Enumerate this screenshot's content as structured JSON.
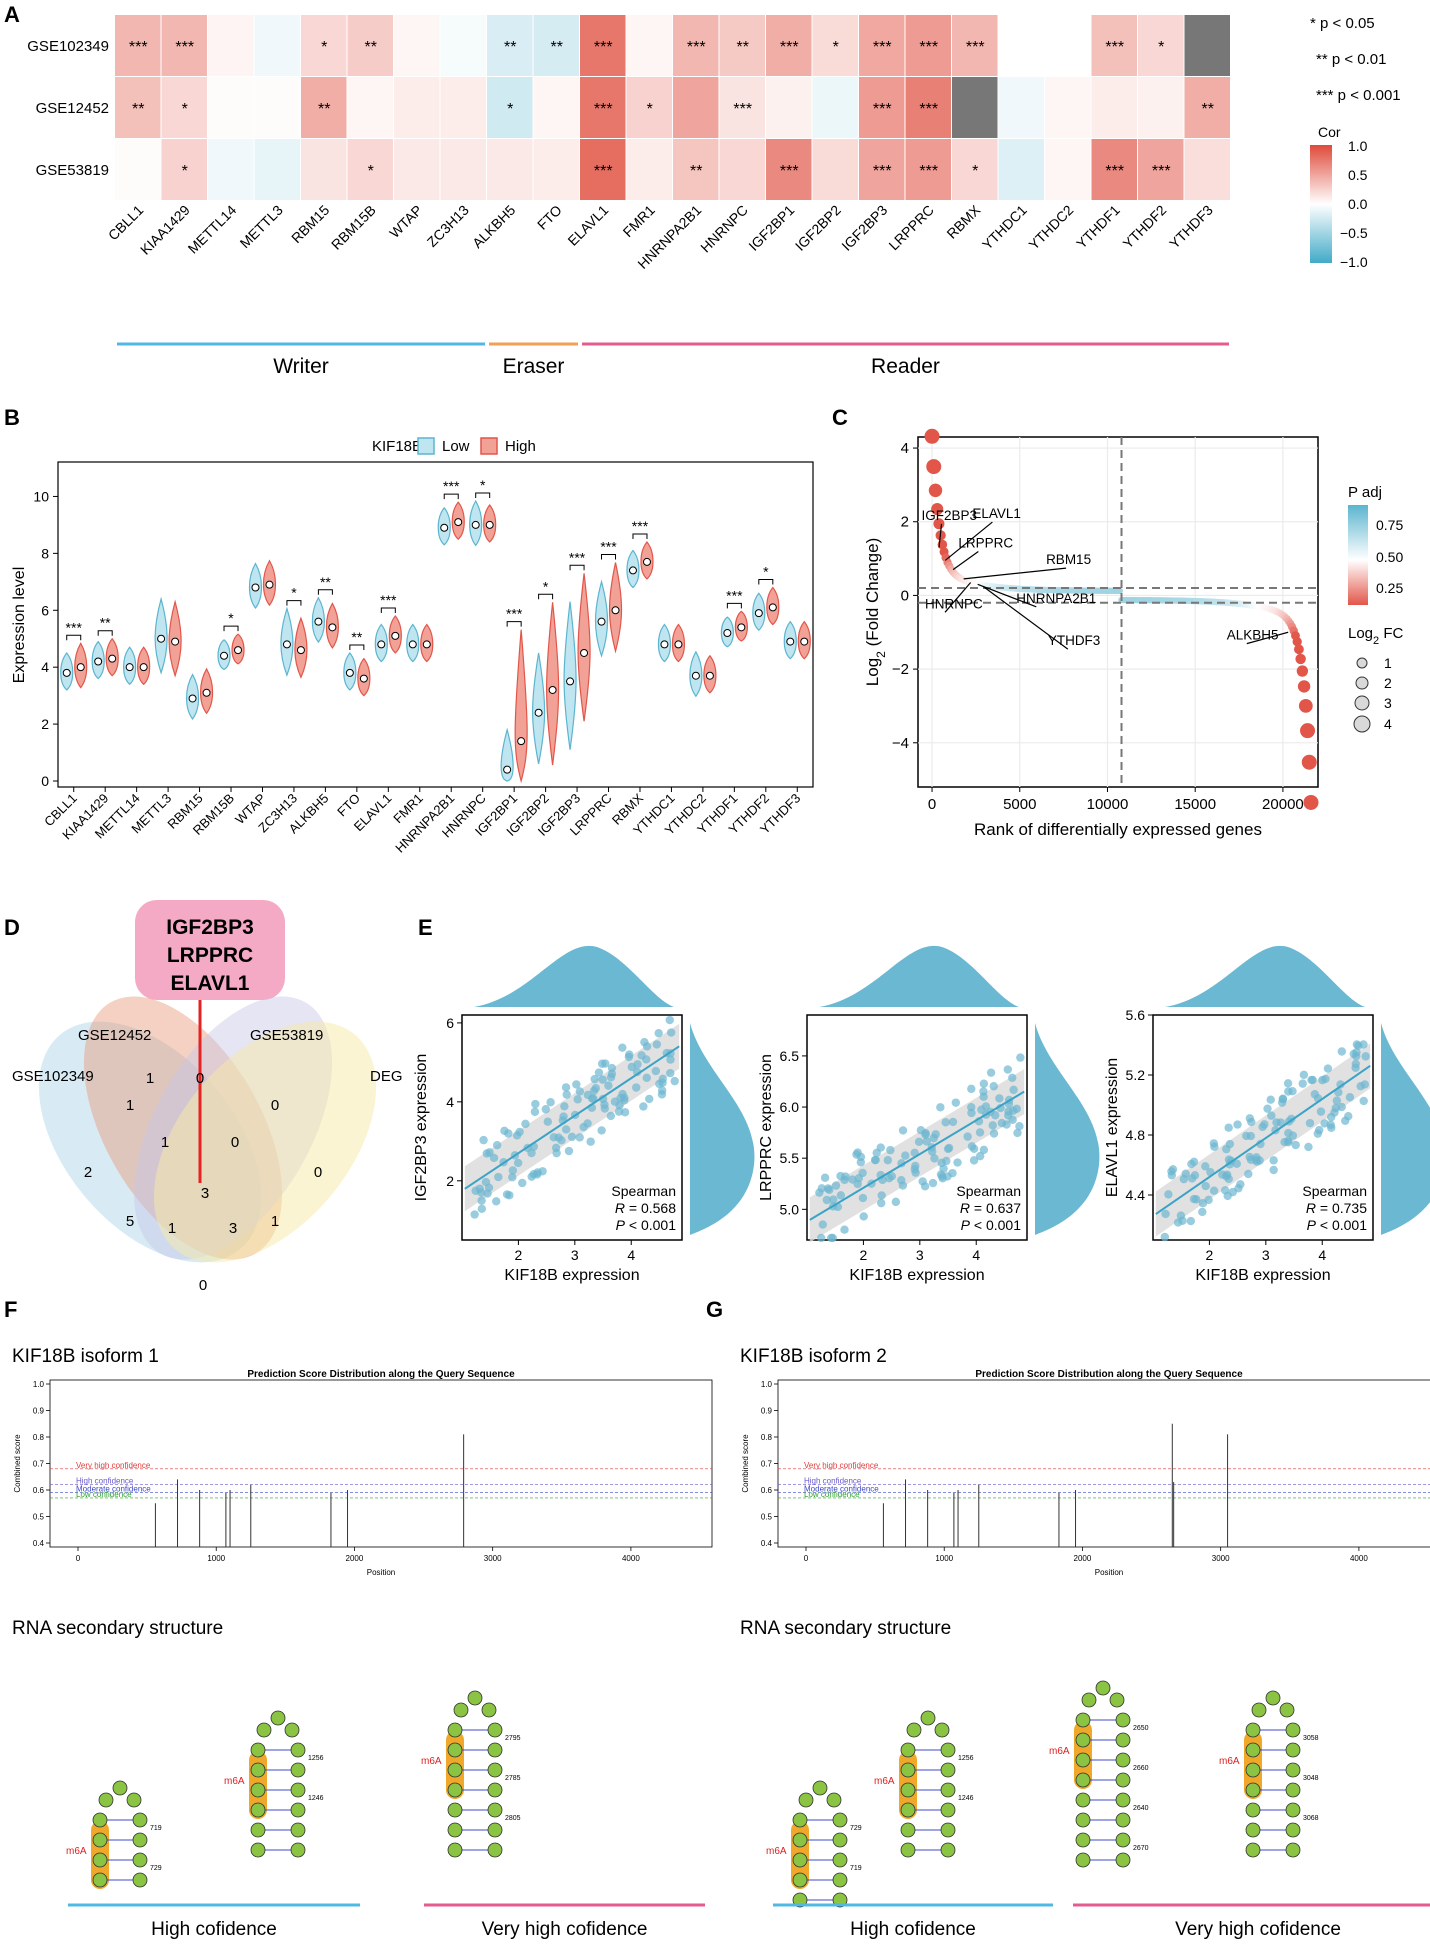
{
  "panels": {
    "A": "A",
    "B": "B",
    "C": "C",
    "D": "D",
    "E": "E",
    "F": "F",
    "G": "G"
  },
  "colors": {
    "low": "#5bb5cf",
    "high": "#e2564a",
    "writer": "#4fb8e3",
    "eraser": "#f2a052",
    "reader": "#e45b8f",
    "scatter": "#5aaecb",
    "venn_label_bg": "#f4a9c5",
    "m6a_highlight": "#f0a82a",
    "nucleotide": "#8ac442"
  },
  "heatmap": {
    "datasets": [
      "GSE102349",
      "GSE12452",
      "GSE53819"
    ],
    "genes": [
      "CBLL1",
      "KIAA1429",
      "METTL14",
      "METTL3",
      "RBM15",
      "RBM15B",
      "WTAP",
      "ZC3H13",
      "ALKBH5",
      "FTO",
      "ELAVL1",
      "FMR1",
      "HNRNPA2B1",
      "HNRNPC",
      "IGF2BP1",
      "IGF2BP2",
      "IGF2BP3",
      "LRPPRC",
      "RBMX",
      "YTHDC1",
      "YTHDC2",
      "YTHDF1",
      "YTHDF2",
      "YTHDF3"
    ],
    "values": [
      [
        0.4,
        0.4,
        0.06,
        -0.08,
        0.22,
        0.28,
        0.05,
        -0.05,
        -0.2,
        -0.22,
        0.75,
        0.05,
        0.4,
        0.3,
        0.45,
        0.2,
        0.48,
        0.55,
        0.4,
        0.0,
        0.0,
        0.35,
        0.22,
        null
      ],
      [
        0.35,
        0.22,
        0.02,
        0.02,
        0.45,
        0.05,
        0.1,
        0.1,
        -0.25,
        0.05,
        0.75,
        0.25,
        0.5,
        0.15,
        0.08,
        -0.1,
        0.55,
        0.7,
        null,
        -0.08,
        0.05,
        0.1,
        0.08,
        0.45
      ],
      [
        0.02,
        0.25,
        -0.08,
        -0.12,
        0.15,
        0.22,
        0.12,
        0.12,
        0.12,
        0.1,
        0.8,
        0.1,
        0.32,
        0.22,
        0.65,
        0.2,
        0.5,
        0.55,
        0.22,
        -0.18,
        0.05,
        0.65,
        0.5,
        0.18
      ]
    ],
    "stars": [
      [
        "***",
        "***",
        "",
        "",
        "*",
        "**",
        "",
        "",
        "**",
        "**",
        "***",
        "",
        "***",
        "**",
        "***",
        "*",
        "***",
        "***",
        "***",
        "",
        "",
        "***",
        "*",
        ""
      ],
      [
        "**",
        "*",
        "",
        "",
        "**",
        "",
        "",
        "",
        "*",
        "",
        "***",
        "*",
        "",
        "***",
        "",
        "",
        "***",
        "***",
        "",
        "",
        "",
        "",
        "",
        "**"
      ],
      [
        "",
        "*",
        "",
        "",
        "",
        "*",
        "",
        "",
        "",
        "",
        "***",
        "",
        "**",
        "",
        "***",
        "",
        "***",
        "***",
        "*",
        "",
        "",
        "***",
        "***",
        ""
      ]
    ],
    "legend_title": "Cor",
    "legend_ticks": [
      "1.0",
      "0.5",
      "0.0",
      "−0.5",
      "−1.0"
    ],
    "significance_notes": [
      "* p < 0.05",
      "** p < 0.01",
      "*** p < 0.001"
    ],
    "groups": [
      {
        "name": "Writer",
        "from": 0,
        "to": 7,
        "color": "#4fb8e3"
      },
      {
        "name": "Eraser",
        "from": 8,
        "to": 9,
        "color": "#f2a052"
      },
      {
        "name": "Reader",
        "from": 10,
        "to": 23,
        "color": "#e45b8f"
      }
    ]
  },
  "violin": {
    "legend_title": "KIF18B",
    "legend_low": "Low",
    "legend_high": "High",
    "ylabel": "Expression level",
    "yticks": [
      "0",
      "2",
      "4",
      "6",
      "8",
      "10"
    ],
    "ylim": [
      0,
      11
    ],
    "genes": [
      "CBLL1",
      "KIAA1429",
      "METTL14",
      "METTL3",
      "RBM15",
      "RBM15B",
      "WTAP",
      "ZC3H13",
      "ALKBH5",
      "FTO",
      "ELAVL1",
      "FMR1",
      "HNRNPA2B1",
      "HNRNPC",
      "IGF2BP1",
      "IGF2BP2",
      "IGF2BP3",
      "LRPPRC",
      "RBMX",
      "YTHDC1",
      "YTHDC2",
      "YTHDF1",
      "YTHDF2",
      "YTHDF3"
    ],
    "low_median": [
      3.8,
      4.2,
      4.0,
      5.0,
      2.9,
      4.4,
      6.8,
      4.8,
      5.6,
      3.8,
      4.8,
      4.8,
      8.9,
      9.0,
      0.4,
      2.4,
      3.5,
      5.6,
      7.4,
      4.8,
      3.7,
      5.2,
      5.9,
      4.9
    ],
    "high_median": [
      4.0,
      4.3,
      4.0,
      4.9,
      3.1,
      4.6,
      6.9,
      4.6,
      5.4,
      3.6,
      5.1,
      4.8,
      9.1,
      9.0,
      1.4,
      3.2,
      4.5,
      6.0,
      7.7,
      4.8,
      3.7,
      5.4,
      6.1,
      4.9
    ],
    "low_spread": [
      0.5,
      0.5,
      0.5,
      1.0,
      0.6,
      0.4,
      0.6,
      0.9,
      0.6,
      0.5,
      0.5,
      0.5,
      0.5,
      0.6,
      1.0,
      1.5,
      2.0,
      1.0,
      0.5,
      0.5,
      0.6,
      0.4,
      0.5,
      0.5
    ],
    "high_spread": [
      0.6,
      0.5,
      0.5,
      1.0,
      0.6,
      0.4,
      0.6,
      0.8,
      0.6,
      0.5,
      0.5,
      0.5,
      0.5,
      0.5,
      2.8,
      2.2,
      2.0,
      1.2,
      0.5,
      0.5,
      0.5,
      0.4,
      0.5,
      0.5
    ],
    "stars": [
      "***",
      "**",
      "",
      "",
      "",
      "*",
      "",
      "*",
      "**",
      "**",
      "***",
      "",
      "***",
      "*",
      "***",
      "*",
      "***",
      "***",
      "***",
      "",
      "",
      "***",
      "*",
      ""
    ]
  },
  "rank": {
    "xlabel": "Rank of differentially expressed genes",
    "ylabel_main": "Log",
    "ylabel_sub": "2",
    "ylabel_rest": " (Fold Change)",
    "xticks": [
      0,
      5000,
      10000,
      15000,
      20000
    ],
    "xtick_labels": [
      "0",
      "5000",
      "10000",
      "15000",
      "20000"
    ],
    "yticks": [
      -4,
      -2,
      0,
      2,
      4
    ],
    "ytick_labels": [
      "−4",
      "−2",
      "0",
      "2",
      "4"
    ],
    "xlim": [
      -800,
      22000
    ],
    "ylim": [
      -5.2,
      4.3
    ],
    "n_genes": 21600,
    "vline": 10800,
    "hlines": [
      0.2,
      -0.2
    ],
    "labels": [
      {
        "text": "IGF2BP3",
        "rank": 400,
        "lfc": 1.3,
        "tx": -600,
        "ty": 2.05
      },
      {
        "text": "ELAVL1",
        "rank": 750,
        "lfc": 0.95,
        "tx": 2300,
        "ty": 2.1
      },
      {
        "text": "LRPPRC",
        "rank": 1200,
        "lfc": 0.7,
        "tx": 1500,
        "ty": 1.3
      },
      {
        "text": "RBM15",
        "rank": 1800,
        "lfc": 0.45,
        "tx": 6500,
        "ty": 0.85
      },
      {
        "text": "HNRNPC",
        "rank": 2200,
        "lfc": 0.35,
        "tx": -400,
        "ty": -0.35
      },
      {
        "text": "HNRNPA2B1",
        "rank": 2600,
        "lfc": 0.3,
        "tx": 4800,
        "ty": -0.2
      },
      {
        "text": "YTHDF3",
        "rank": 2900,
        "lfc": 0.25,
        "tx": 6600,
        "ty": -1.35
      },
      {
        "text": "ALKBH5",
        "rank": 20300,
        "lfc": -1.0,
        "tx": 16800,
        "ty": -1.2
      }
    ],
    "legend_padj_title": "P adj",
    "legend_padj_ticks": [
      "0.75",
      "0.50",
      "0.25"
    ],
    "legend_fc_title_main": "Log",
    "legend_fc_title_sub": "2",
    "legend_fc_title_rest": " FC",
    "legend_fc_values": [
      "1",
      "2",
      "3",
      "4"
    ]
  },
  "venn": {
    "callout": [
      "IGF2BP3",
      "LRPPRC",
      "ELAVL1"
    ],
    "set_names": [
      "GSE102349",
      "GSE12452",
      "GSE53819",
      "DEG"
    ],
    "counts": [
      "1",
      "0",
      "1",
      "0",
      "2",
      "1",
      "0",
      "0",
      "3",
      "5",
      "1",
      "1",
      "3",
      "0"
    ]
  },
  "scatter": {
    "xlabel": "KIF18B expression",
    "method": "Spearman",
    "r_label": "R",
    "p_label": "P",
    "plots": [
      {
        "ylabel": "IGF2BP3 expression",
        "r": "0.568",
        "p": "< 0.001",
        "yticks": [
          "2",
          "4",
          "6"
        ],
        "yvals": [
          2,
          4,
          6
        ],
        "ylim": [
          0.5,
          6.2
        ],
        "xlim": [
          1.0,
          4.9
        ],
        "intercept": 0.8,
        "slope": 0.95
      },
      {
        "ylabel": "LRPPRC expression",
        "r": "0.637",
        "p": "< 0.001",
        "yticks": [
          "5.0",
          "5.5",
          "6.0",
          "6.5"
        ],
        "yvals": [
          5.0,
          5.5,
          6.0,
          6.5
        ],
        "ylim": [
          4.7,
          6.9
        ],
        "xlim": [
          1.0,
          4.9
        ],
        "intercept": 4.55,
        "slope": 0.33
      },
      {
        "ylabel": "ELAVL1 expression",
        "r": "0.735",
        "p": "< 0.001",
        "yticks": [
          "4.4",
          "4.8",
          "5.2",
          "5.6"
        ],
        "yvals": [
          4.4,
          4.8,
          5.2,
          5.6
        ],
        "ylim": [
          4.1,
          5.6
        ],
        "xlim": [
          1.0,
          4.9
        ],
        "intercept": 4.0,
        "slope": 0.26
      }
    ]
  },
  "sramp": [
    {
      "title": "KIF18B isoform 1",
      "plot_title": "Prediction Score Distribution along the Query Sequence",
      "ylabel": "Combined score",
      "xlabel": "Position",
      "xticks": [
        "0",
        "1000",
        "2000",
        "3000",
        "4000"
      ],
      "yticks": [
        "0.4",
        "0.5",
        "0.6",
        "0.7",
        "0.8",
        "0.9",
        "1.0"
      ],
      "conf_labels": [
        "Very high confidence",
        "High confidence",
        "Moderate confidence",
        "Low confidence"
      ],
      "positions": [
        560,
        720,
        880,
        1070,
        1100,
        1250,
        1830,
        1950,
        2790
      ],
      "scores": [
        0.55,
        0.64,
        0.6,
        0.59,
        0.6,
        0.62,
        0.59,
        0.6,
        0.81
      ],
      "rna_title": "RNA secondary structure",
      "structures": [
        {
          "m6a": "m6A",
          "idx": [
            "719",
            "729"
          ]
        },
        {
          "m6a": "m6A",
          "idx": [
            "1256",
            "1246"
          ]
        },
        {
          "m6a": "m6A",
          "idx": [
            "2795",
            "2785",
            "2805"
          ]
        }
      ],
      "confidence_labels": [
        "High cofidence",
        "Very high cofidence"
      ]
    },
    {
      "title": "KIF18B isoform 2",
      "plot_title": "Prediction Score Distribution along the Query Sequence",
      "ylabel": "Combined score",
      "xlabel": "Position",
      "xticks": [
        "0",
        "1000",
        "2000",
        "3000",
        "4000"
      ],
      "yticks": [
        "0.4",
        "0.5",
        "0.6",
        "0.7",
        "0.8",
        "0.9",
        "1.0"
      ],
      "conf_labels": [
        "Very high confidence",
        "High confidence",
        "Moderate confidence",
        "Low confidence"
      ],
      "positions": [
        560,
        720,
        880,
        1070,
        1100,
        1250,
        1830,
        1950,
        2650,
        2660,
        3050
      ],
      "scores": [
        0.55,
        0.64,
        0.6,
        0.59,
        0.6,
        0.62,
        0.59,
        0.6,
        0.85,
        0.63,
        0.81
      ],
      "rna_title": "RNA secondary structure",
      "structures": [
        {
          "m6a": "m6A",
          "idx": [
            "729",
            "719"
          ]
        },
        {
          "m6a": "m6A",
          "idx": [
            "1256",
            "1246"
          ]
        },
        {
          "m6a": "m6A",
          "idx": [
            "2650",
            "2660",
            "2640",
            "2670"
          ]
        },
        {
          "m6a": "m6A",
          "idx": [
            "3058",
            "3048",
            "3068"
          ]
        }
      ],
      "confidence_labels": [
        "High cofidence",
        "Very high cofidence"
      ]
    }
  ]
}
